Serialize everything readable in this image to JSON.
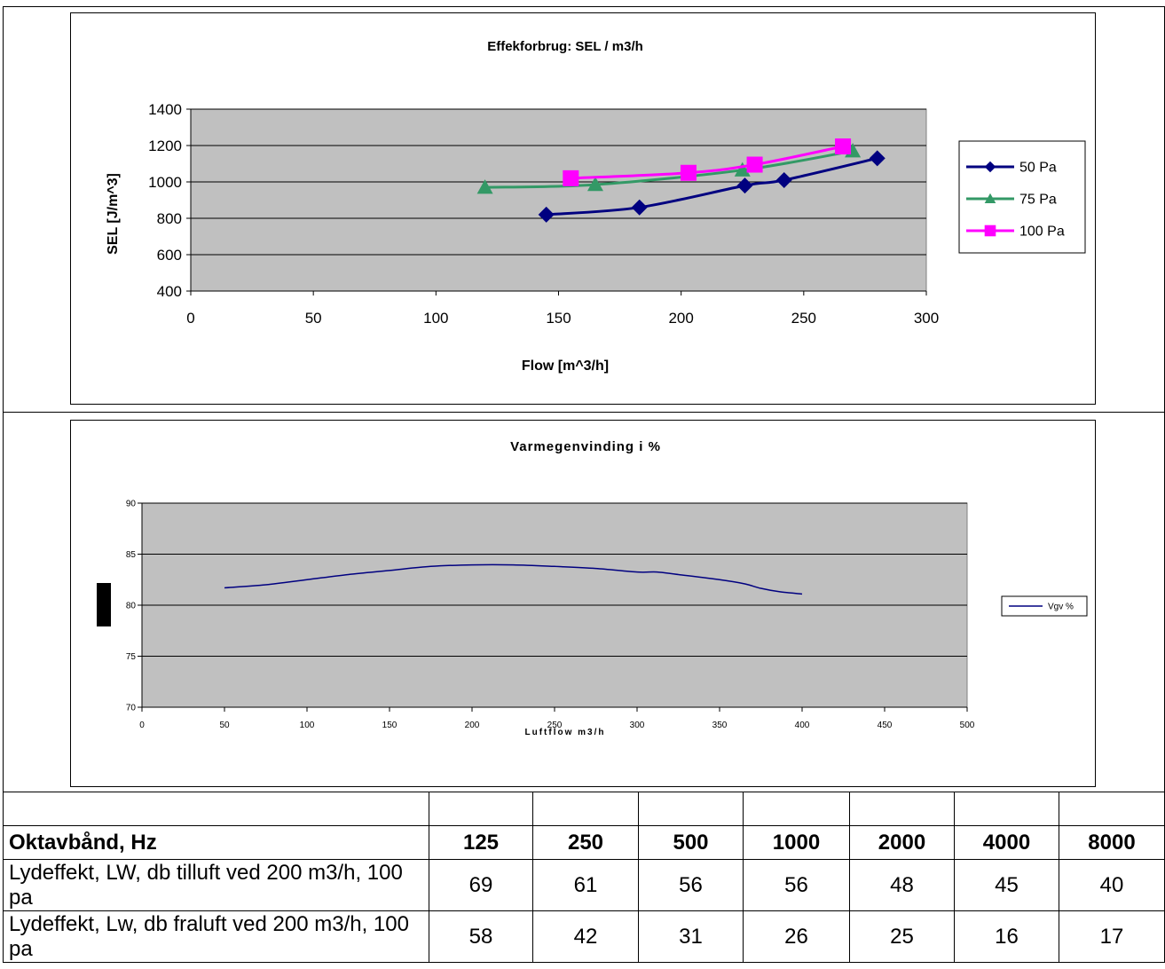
{
  "chart_data": [
    {
      "type": "line",
      "title": "Effekforbrug:  SEL / m3/h",
      "xlabel": "Flow  [m^3/h]",
      "ylabel": "SEL  [J/m^3]",
      "xlim": [
        0,
        300
      ],
      "ylim": [
        400,
        1400
      ],
      "x_ticks": [
        "0",
        "50",
        "100",
        "150",
        "200",
        "250",
        "300"
      ],
      "y_ticks": [
        "400",
        "600",
        "800",
        "1000",
        "1200",
        "1400"
      ],
      "grid": true,
      "legend": "right",
      "series": [
        {
          "name": "50 Pa",
          "color": "#000080",
          "marker": "diamond",
          "x": [
            145,
            183,
            226,
            242,
            280
          ],
          "y": [
            820,
            860,
            980,
            1010,
            1130
          ]
        },
        {
          "name": "75 Pa",
          "color": "#339966",
          "marker": "triangle",
          "x": [
            120,
            165,
            225,
            270
          ],
          "y": [
            970,
            985,
            1065,
            1170
          ]
        },
        {
          "name": "100 Pa",
          "color": "#ff00ff",
          "marker": "square",
          "x": [
            155,
            203,
            230,
            266
          ],
          "y": [
            1020,
            1050,
            1095,
            1195
          ]
        }
      ]
    },
    {
      "type": "line",
      "title": "Varmegenvinding i %",
      "xlabel": "Luftflow m3/h",
      "ylabel": "",
      "xlim": [
        0,
        500
      ],
      "ylim": [
        70,
        90
      ],
      "x_ticks": [
        "0",
        "50",
        "100",
        "150",
        "200",
        "250",
        "300",
        "350",
        "400",
        "450",
        "500"
      ],
      "y_ticks": [
        "70",
        "75",
        "80",
        "85",
        "90"
      ],
      "grid": true,
      "legend": "right",
      "series": [
        {
          "name": "Vgv %",
          "color": "#000080",
          "x": [
            50,
            75,
            100,
            125,
            150,
            175,
            200,
            225,
            250,
            275,
            300,
            312,
            325,
            350,
            365,
            375,
            387,
            400
          ],
          "y": [
            81.7,
            82.0,
            82.5,
            83.0,
            83.4,
            83.8,
            83.95,
            83.95,
            83.8,
            83.6,
            83.25,
            83.25,
            83.0,
            82.5,
            82.1,
            81.65,
            81.3,
            81.1
          ]
        }
      ]
    }
  ],
  "table": {
    "header": {
      "label": "Oktavbånd, Hz",
      "bands": [
        "125",
        "250",
        "500",
        "1000",
        "2000",
        "4000",
        "8000"
      ]
    },
    "rows": [
      {
        "label": "Lydeffekt, LW, db tilluft ved 200 m3/h, 100 pa",
        "values": [
          "69",
          "61",
          "56",
          "56",
          "48",
          "45",
          "40"
        ]
      },
      {
        "label": "Lydeffekt, Lw, db fraluft ved 200 m3/h, 100 pa",
        "values": [
          "58",
          "42",
          "31",
          "26",
          "25",
          "16",
          "17"
        ]
      }
    ]
  }
}
